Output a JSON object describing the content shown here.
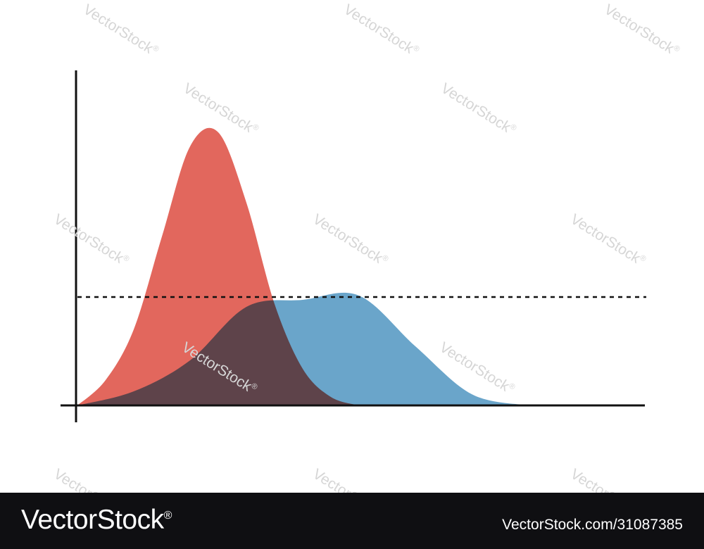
{
  "chart_data": {
    "type": "area",
    "title": "",
    "xlabel": "",
    "ylabel": "",
    "xlim": [
      0,
      10
    ],
    "ylim": [
      0,
      10
    ],
    "grid": false,
    "legend": "none",
    "series": [
      {
        "color": "#e05a4f",
        "opacity": 0.92,
        "x": [
          0,
          0.5,
          1.0,
          1.5,
          2.0,
          2.5,
          3.0,
          3.5,
          4.0,
          4.5,
          5.0
        ],
        "y": [
          0,
          0.9,
          2.7,
          6.0,
          9.2,
          9.7,
          7.2,
          3.6,
          1.3,
          0.3,
          0
        ]
      },
      {
        "color": "#5a9bc4",
        "opacity": 0.9,
        "x": [
          0,
          1,
          2,
          3,
          4,
          5,
          6,
          7,
          8
        ],
        "y": [
          0,
          0.5,
          1.6,
          3.5,
          3.75,
          3.9,
          2.1,
          0.4,
          0
        ]
      }
    ],
    "reference_line": {
      "style": "dashed",
      "y": 3.85
    }
  },
  "watermark": {
    "text": "VectorStock"
  },
  "footer": {
    "logo_text": "VectorStock",
    "logo_reg": "®",
    "image_id": "VectorStock.com/31087385"
  }
}
